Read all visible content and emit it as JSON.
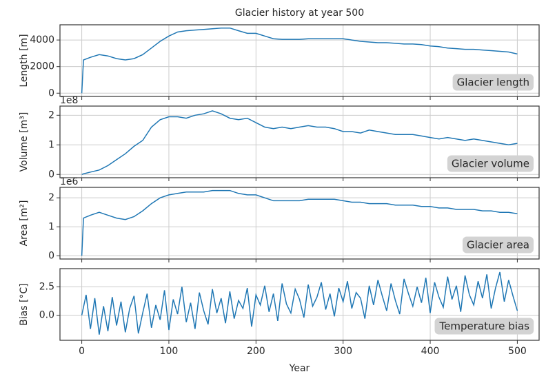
{
  "chart_data": [
    {
      "type": "line",
      "title": "Glacier history at year 500",
      "ylabel": "Length [m]",
      "annotation": "Glacier length",
      "color": "#1f77b4",
      "grid": true,
      "x": [
        0,
        2,
        10,
        20,
        30,
        40,
        50,
        60,
        70,
        80,
        90,
        100,
        110,
        120,
        130,
        140,
        150,
        160,
        170,
        180,
        190,
        200,
        210,
        220,
        230,
        240,
        250,
        260,
        270,
        280,
        290,
        300,
        310,
        320,
        330,
        340,
        350,
        360,
        370,
        380,
        390,
        400,
        410,
        420,
        430,
        440,
        450,
        460,
        470,
        480,
        490,
        500
      ],
      "values": [
        0,
        2500,
        2700,
        2900,
        2800,
        2600,
        2500,
        2600,
        2900,
        3400,
        3900,
        4300,
        4600,
        4700,
        4750,
        4800,
        4850,
        4900,
        4900,
        4700,
        4500,
        4500,
        4300,
        4100,
        4050,
        4050,
        4050,
        4100,
        4100,
        4100,
        4100,
        4100,
        4000,
        3900,
        3850,
        3800,
        3800,
        3750,
        3700,
        3700,
        3650,
        3550,
        3500,
        3400,
        3350,
        3300,
        3300,
        3250,
        3200,
        3150,
        3100,
        2950
      ],
      "ylim": [
        -245,
        5145
      ],
      "yticks": [
        0,
        2000,
        4000
      ]
    },
    {
      "type": "line",
      "ylabel": "Volume [m³]",
      "offset": "1e8",
      "annotation": "Glacier volume",
      "color": "#1f77b4",
      "grid": true,
      "x": [
        0,
        2,
        10,
        20,
        30,
        40,
        50,
        60,
        70,
        80,
        90,
        100,
        110,
        120,
        130,
        140,
        150,
        160,
        170,
        180,
        190,
        200,
        210,
        220,
        230,
        240,
        250,
        260,
        270,
        280,
        290,
        300,
        310,
        320,
        330,
        340,
        350,
        360,
        370,
        380,
        390,
        400,
        410,
        420,
        430,
        440,
        450,
        460,
        470,
        480,
        490,
        500
      ],
      "values": [
        0,
        0.02,
        0.08,
        0.15,
        0.3,
        0.5,
        0.7,
        0.95,
        1.15,
        1.6,
        1.85,
        1.95,
        1.95,
        1.9,
        2.0,
        2.05,
        2.15,
        2.05,
        1.9,
        1.85,
        1.9,
        1.75,
        1.6,
        1.55,
        1.6,
        1.55,
        1.6,
        1.65,
        1.6,
        1.6,
        1.55,
        1.45,
        1.45,
        1.4,
        1.5,
        1.45,
        1.4,
        1.35,
        1.35,
        1.35,
        1.3,
        1.25,
        1.2,
        1.25,
        1.2,
        1.15,
        1.2,
        1.15,
        1.1,
        1.05,
        1.0,
        1.05
      ],
      "ylim": [
        -0.11,
        2.31
      ],
      "yticks": [
        0,
        1,
        2
      ]
    },
    {
      "type": "line",
      "ylabel": "Area [m²]",
      "offset": "1e6",
      "annotation": "Glacier area",
      "color": "#1f77b4",
      "grid": true,
      "x": [
        0,
        2,
        10,
        20,
        30,
        40,
        50,
        60,
        70,
        80,
        90,
        100,
        110,
        120,
        130,
        140,
        150,
        160,
        170,
        180,
        190,
        200,
        210,
        220,
        230,
        240,
        250,
        260,
        270,
        280,
        290,
        300,
        310,
        320,
        330,
        340,
        350,
        360,
        370,
        380,
        390,
        400,
        410,
        420,
        430,
        440,
        450,
        460,
        470,
        480,
        490,
        500
      ],
      "values": [
        0,
        1.3,
        1.4,
        1.5,
        1.4,
        1.3,
        1.25,
        1.35,
        1.55,
        1.8,
        2.0,
        2.1,
        2.15,
        2.2,
        2.2,
        2.2,
        2.25,
        2.25,
        2.25,
        2.15,
        2.1,
        2.1,
        2.0,
        1.9,
        1.9,
        1.9,
        1.9,
        1.95,
        1.95,
        1.95,
        1.95,
        1.9,
        1.85,
        1.85,
        1.8,
        1.8,
        1.8,
        1.75,
        1.75,
        1.75,
        1.7,
        1.7,
        1.65,
        1.65,
        1.6,
        1.6,
        1.6,
        1.55,
        1.55,
        1.5,
        1.5,
        1.45
      ],
      "ylim": [
        -0.11,
        2.36
      ],
      "yticks": [
        0,
        1,
        2
      ]
    },
    {
      "type": "line",
      "ylabel": "Bias [°C]",
      "xlabel": "Year",
      "annotation": "Temperature bias",
      "color": "#1f77b4",
      "grid": true,
      "x": [
        0,
        5,
        10,
        15,
        20,
        25,
        30,
        35,
        40,
        45,
        50,
        55,
        60,
        65,
        70,
        75,
        80,
        85,
        90,
        95,
        100,
        105,
        110,
        115,
        120,
        125,
        130,
        135,
        140,
        145,
        150,
        155,
        160,
        165,
        170,
        175,
        180,
        185,
        190,
        195,
        200,
        205,
        210,
        215,
        220,
        225,
        230,
        235,
        240,
        245,
        250,
        255,
        260,
        265,
        270,
        275,
        280,
        285,
        290,
        295,
        300,
        305,
        310,
        315,
        320,
        325,
        330,
        335,
        340,
        345,
        350,
        355,
        360,
        365,
        370,
        375,
        380,
        385,
        390,
        395,
        400,
        405,
        410,
        415,
        420,
        425,
        430,
        435,
        440,
        445,
        450,
        455,
        460,
        465,
        470,
        475,
        480,
        485,
        490,
        495,
        500
      ],
      "values": [
        0,
        1.8,
        -1.2,
        1.5,
        -1.7,
        0.8,
        -1.4,
        1.6,
        -0.9,
        1.2,
        -1.5,
        0.6,
        1.7,
        -1.6,
        0.2,
        1.9,
        -1.1,
        0.9,
        -0.4,
        2.2,
        -1.3,
        1.4,
        0.1,
        2.5,
        -0.6,
        1.1,
        -1.2,
        2.0,
        0.4,
        -0.8,
        2.3,
        0.2,
        1.5,
        -0.7,
        2.1,
        -0.3,
        1.3,
        0.6,
        2.4,
        -1.0,
        1.8,
        0.9,
        2.6,
        0.3,
        1.9,
        -0.5,
        2.8,
        1.0,
        0.2,
        2.3,
        1.4,
        -0.2,
        2.7,
        0.8,
        1.6,
        2.9,
        0.5,
        1.9,
        -0.1,
        2.4,
        1.2,
        3.0,
        0.6,
        2.0,
        1.5,
        -0.3,
        2.6,
        0.9,
        3.1,
        1.7,
        0.4,
        2.8,
        1.3,
        0.1,
        3.2,
        1.9,
        0.8,
        2.5,
        1.1,
        3.3,
        0.2,
        2.9,
        1.6,
        0.7,
        3.4,
        1.4,
        2.6,
        0.3,
        3.5,
        1.8,
        0.9,
        3.0,
        1.5,
        3.6,
        0.6,
        2.4,
        3.8,
        1.2,
        3.1,
        1.7,
        0.4
      ],
      "ylim": [
        -2.2,
        4.1
      ],
      "yticks": [
        {
          "value": 0,
          "label": "0.0"
        },
        2.5
      ],
      "xlim": [
        -25,
        525
      ],
      "xticks": [
        0,
        100,
        200,
        300,
        400,
        500
      ]
    }
  ]
}
